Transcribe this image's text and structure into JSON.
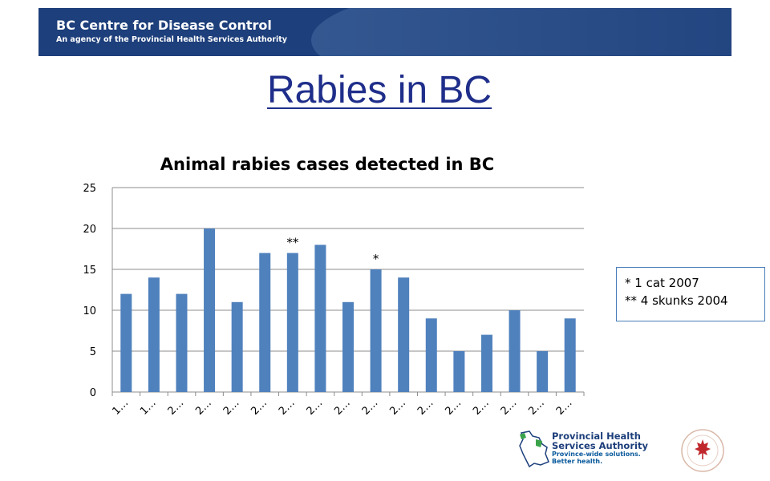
{
  "header": {
    "org_name": "BC Centre for Disease Control",
    "org_sub": "An agency of the Provincial Health Services Authority"
  },
  "slide_title": "Rabies in BC",
  "note": {
    "line1": "* 1 cat 2007",
    "line2": "** 4 skunks 2004"
  },
  "footer": {
    "phsa_line1": "Provincial Health",
    "phsa_line2": "Services Authority",
    "phsa_tag1": "Province-wide solutions.",
    "phsa_tag2": "Better health."
  },
  "colors": {
    "bar": "#4f81bd",
    "banner": "#1d3f7b",
    "title": "#1f2e8a"
  },
  "chart_data": {
    "type": "bar",
    "title": "Animal rabies cases detected in BC",
    "xlabel": "",
    "ylabel": "",
    "categories": [
      "1…",
      "1…",
      "2…",
      "2…",
      "2…",
      "2…",
      "2…",
      "2…",
      "2…",
      "2…",
      "2…",
      "2…",
      "2…",
      "2…",
      "2…",
      "2…",
      "2…"
    ],
    "values": [
      12,
      14,
      12,
      20,
      11,
      17,
      17,
      18,
      11,
      15,
      14,
      9,
      5,
      7,
      10,
      5,
      9
    ],
    "bar_annotations": [
      {
        "index": 6,
        "text": "**"
      },
      {
        "index": 9,
        "text": "*"
      }
    ],
    "ylim": [
      0,
      25
    ],
    "yticks": [
      0,
      5,
      10,
      15,
      20,
      25
    ],
    "grid": true,
    "legend": "none"
  }
}
